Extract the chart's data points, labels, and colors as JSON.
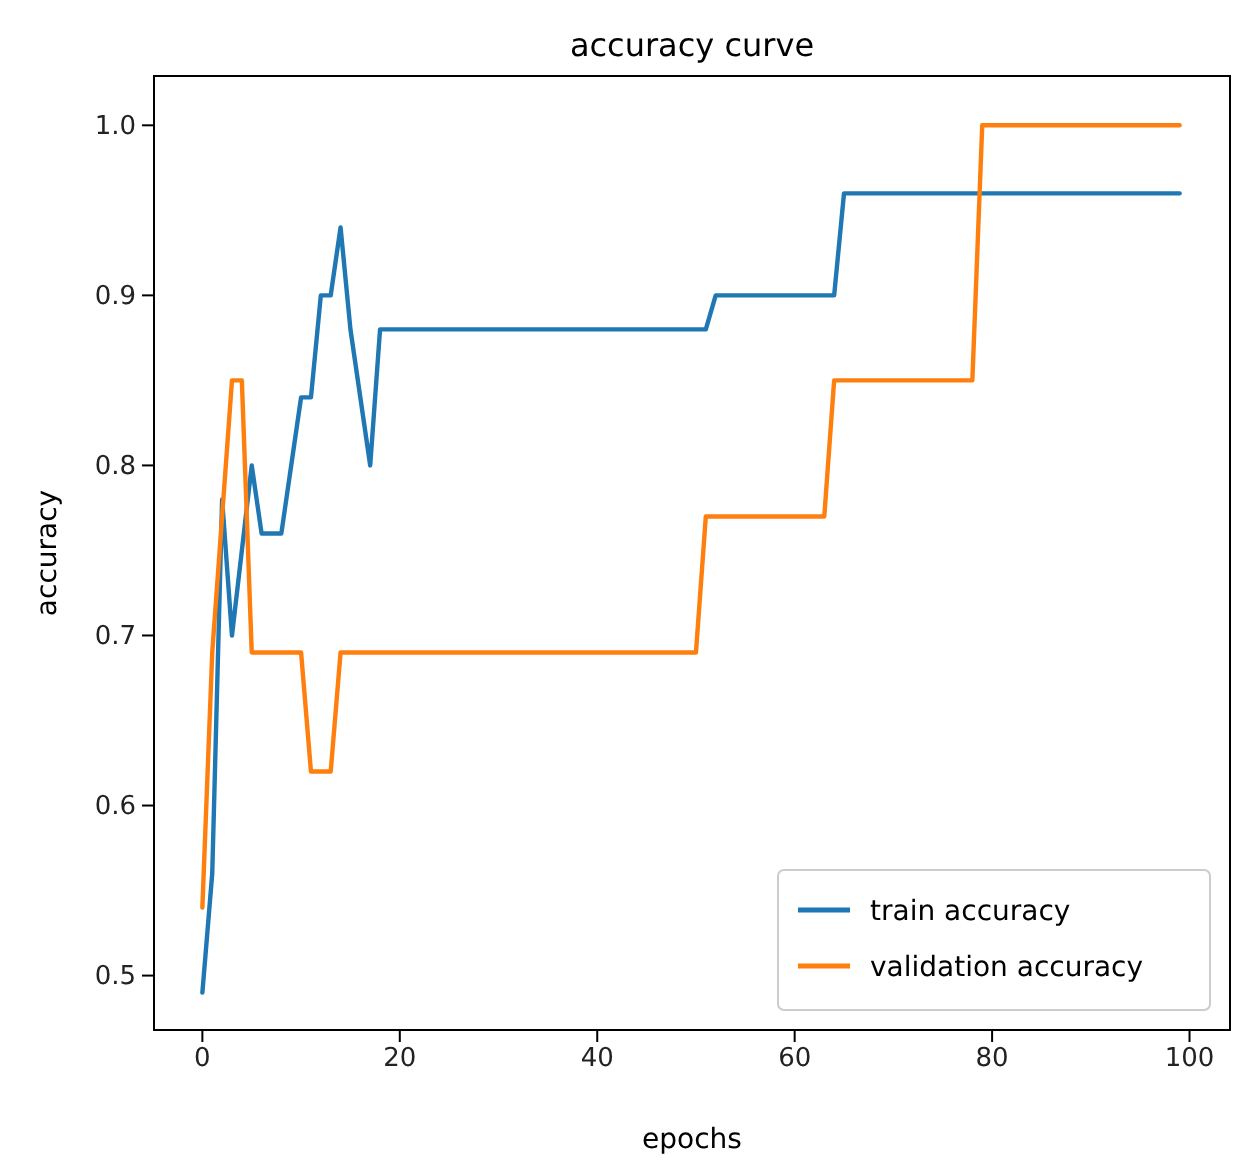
{
  "chart_data": {
    "type": "line",
    "title": "accuracy curve",
    "xlabel": "epochs",
    "ylabel": "accuracy",
    "xlim": [
      -4.9,
      104.1
    ],
    "ylim": [
      0.468,
      1.029
    ],
    "xticks": [
      0,
      20,
      40,
      60,
      80,
      100
    ],
    "yticks": [
      {
        "value": 0.5,
        "label": "0.5"
      },
      {
        "value": 0.6,
        "label": "0.6"
      },
      {
        "value": 0.7,
        "label": "0.7"
      },
      {
        "value": 0.8,
        "label": "0.8"
      },
      {
        "value": 0.9,
        "label": "0.9"
      },
      {
        "value": 1.0,
        "label": "1.0"
      }
    ],
    "grid": false,
    "legend": "bottom right",
    "line_style": "solid",
    "series": [
      {
        "name": "train accuracy",
        "color": "#1f77b4",
        "x": [
          0,
          1,
          2,
          3,
          4,
          5,
          6,
          7,
          8,
          9,
          10,
          11,
          12,
          13,
          14,
          15,
          16,
          17,
          18,
          50,
          51,
          52,
          64,
          65,
          99
        ],
        "values": [
          0.49,
          0.56,
          0.78,
          0.7,
          0.75,
          0.8,
          0.76,
          0.76,
          0.76,
          0.8,
          0.84,
          0.84,
          0.9,
          0.9,
          0.94,
          0.88,
          0.84,
          0.8,
          0.88,
          0.88,
          0.88,
          0.9,
          0.9,
          0.96,
          0.96
        ]
      },
      {
        "name": "validation accuracy",
        "color": "#ff7f0e",
        "x": [
          0,
          1,
          2,
          3,
          4,
          5,
          10,
          11,
          12,
          13,
          14,
          50,
          51,
          63,
          64,
          78,
          79,
          99
        ],
        "values": [
          0.54,
          0.69,
          0.77,
          0.85,
          0.85,
          0.69,
          0.69,
          0.62,
          0.62,
          0.62,
          0.69,
          0.69,
          0.77,
          0.77,
          0.85,
          0.85,
          1.0,
          1.0
        ]
      }
    ]
  }
}
